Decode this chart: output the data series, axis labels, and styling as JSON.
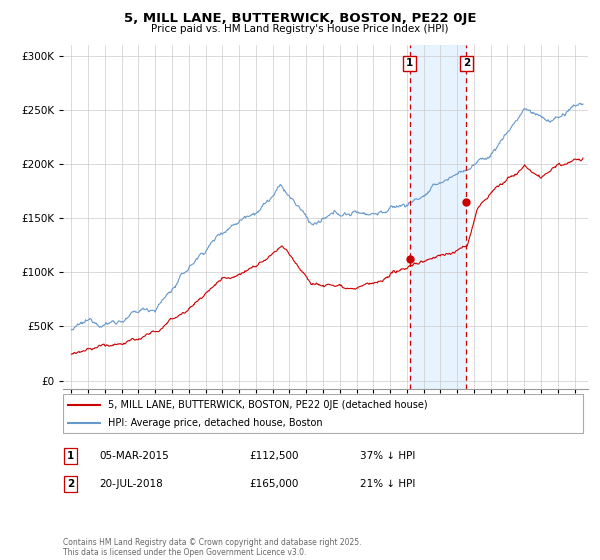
{
  "title": "5, MILL LANE, BUTTERWICK, BOSTON, PE22 0JE",
  "subtitle": "Price paid vs. HM Land Registry's House Price Index (HPI)",
  "legend_line1": "5, MILL LANE, BUTTERWICK, BOSTON, PE22 0JE (detached house)",
  "legend_line2": "HPI: Average price, detached house, Boston",
  "marker1_date": "05-MAR-2015",
  "marker1_price": 112500,
  "marker1_label": "37% ↓ HPI",
  "marker2_date": "20-JUL-2018",
  "marker2_price": 165000,
  "marker2_label": "21% ↓ HPI",
  "footer": "Contains HM Land Registry data © Crown copyright and database right 2025.\nThis data is licensed under the Open Government Licence v3.0.",
  "hpi_color": "#6699cc",
  "price_color": "#cc0000",
  "marker1_x": 2015.17,
  "marker2_x": 2018.55,
  "ylim_max": 310000,
  "ylim_min": -8000,
  "xlim_min": 1994.5,
  "xlim_max": 2025.8
}
